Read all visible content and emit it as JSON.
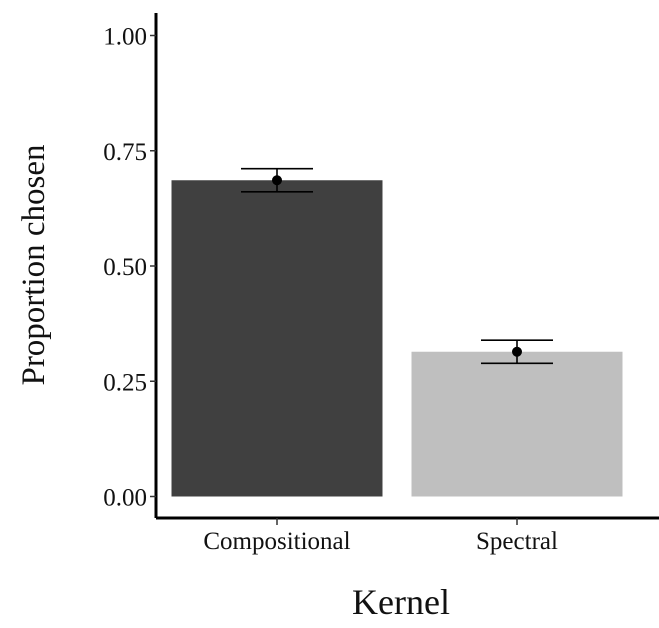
{
  "chart_data": {
    "type": "bar",
    "categories": [
      "Compositional",
      "Spectral"
    ],
    "values": [
      0.686,
      0.314
    ],
    "error_bars": [
      {
        "lower": 0.661,
        "upper": 0.711
      },
      {
        "lower": 0.289,
        "upper": 0.339
      }
    ],
    "bar_colors": [
      "#404040",
      "#bfbfbf"
    ],
    "point_color": "#000000",
    "xlabel": "Kernel",
    "ylabel": "Proportion chosen",
    "ylim": [
      0,
      1.05
    ],
    "yticks": [
      0.0,
      0.25,
      0.5,
      0.75,
      1.0
    ],
    "ytick_labels": [
      "0.00",
      "0.25",
      "0.50",
      "0.75",
      "1.00"
    ],
    "grid": false
  }
}
